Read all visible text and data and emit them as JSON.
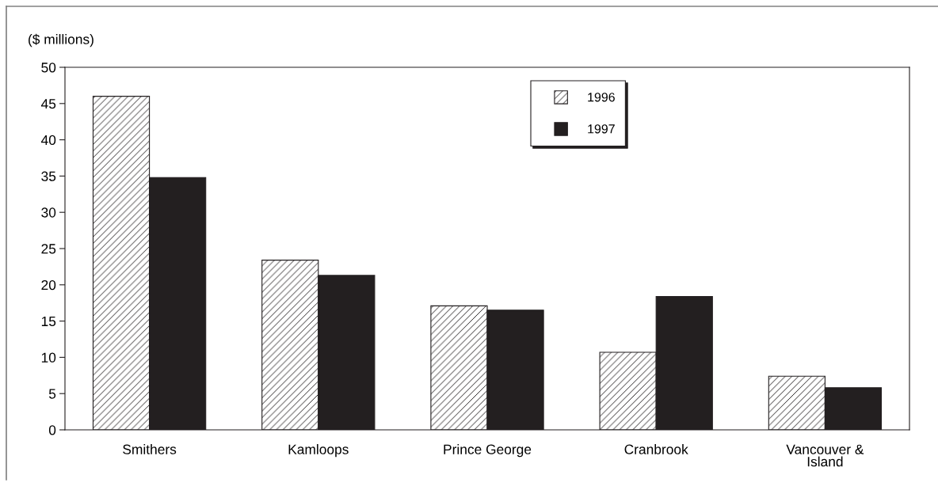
{
  "chart_data": {
    "type": "bar",
    "ylabel": "($ millions)",
    "categories": [
      "Smithers",
      "Kamloops",
      "Prince George",
      "Cranbrook",
      "Vancouver &\nIsland"
    ],
    "series": [
      {
        "name": "1996",
        "color": "#231f20",
        "values": [
          46,
          23.4,
          17.1,
          10.7,
          7.4
        ]
      },
      {
        "name": "1997",
        "color": "#231f20",
        "values": [
          34.8,
          21.3,
          16.5,
          18.4,
          5.8
        ]
      }
    ],
    "ylim": [
      0,
      50
    ],
    "yticks": [
      0,
      5,
      10,
      15,
      20,
      25,
      30,
      35,
      40,
      45,
      50
    ],
    "grid": false,
    "legend": "top"
  }
}
